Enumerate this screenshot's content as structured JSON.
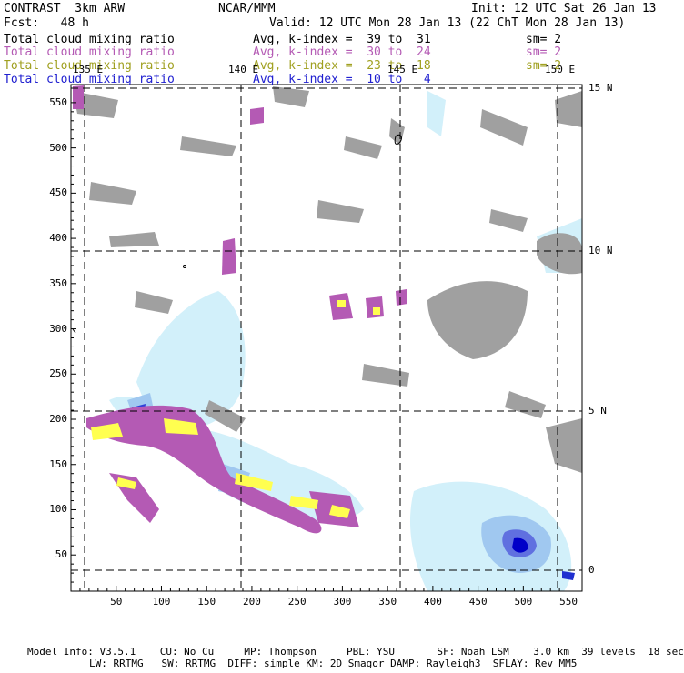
{
  "header": {
    "model": "CONTRAST  3km ARW",
    "center": "NCAR/MMM",
    "init": "Init: 12 UTC Sat 26 Jan 13",
    "fcst": "Fcst:   48 h",
    "valid": "Valid: 12 UTC Mon 28 Jan 13 (22 ChT Mon 28 Jan 13)"
  },
  "fields": [
    {
      "name": "Total cloud mixing ratio",
      "desc": "Avg, k-index =  39 to  31",
      "sm": "sm= 2",
      "color": "#000000"
    },
    {
      "name": "Total cloud mixing ratio",
      "desc": "Avg, k-index =  30 to  24",
      "sm": "sm= 2",
      "color": "#b45ab4"
    },
    {
      "name": "Total cloud mixing ratio",
      "desc": "Avg, k-index =  23 to  18",
      "sm": "sm= 2",
      "color": "#a0a020"
    },
    {
      "name": "Total cloud mixing ratio",
      "desc": "Avg, k-index =  10 to   4",
      "sm": "",
      "color": "#2020d0"
    }
  ],
  "map": {
    "lon_labels": [
      "135 E",
      "140 E",
      "145 E",
      "150 E"
    ],
    "lat_labels": [
      "15 N",
      "10 N",
      "5 N",
      "0"
    ],
    "x_ticks": [
      "50",
      "100",
      "150",
      "200",
      "250",
      "300",
      "350",
      "400",
      "450",
      "500",
      "550"
    ],
    "y_ticks": [
      "550",
      "500",
      "450",
      "400",
      "350",
      "300",
      "250",
      "200",
      "150",
      "100",
      "50"
    ],
    "colors": {
      "high_cloud": "#a0a0a0",
      "mid_cloud": "#b45ab4",
      "low_mid_cloud": "#ffff50",
      "low_cloud_light": "#d2f0fa",
      "low_cloud_mid": "#a0c8f0",
      "low_cloud_dark": "#0000c8"
    }
  },
  "footer": {
    "line1": "Model Info: V3.5.1    CU: No Cu     MP: Thompson     PBL: YSU       SF: Noah LSM    3.0 km  39 levels  18 sec",
    "line2": "LW: RRTMG   SW: RRTMG  DIFF: simple KM: 2D Smagor DAMP: Rayleigh3  SFLAY: Rev MM5"
  }
}
